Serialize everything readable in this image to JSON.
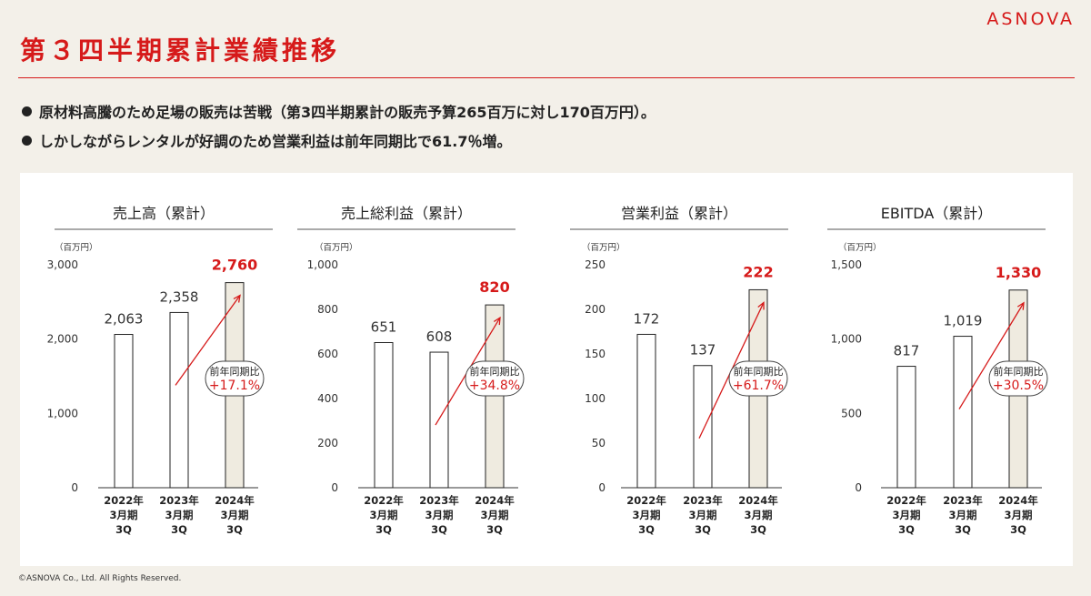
{
  "header": {
    "logo": "ASNOVA",
    "title": "第３四半期累計業績推移"
  },
  "bullets": [
    "原材料高騰のため足場の販売は苦戦（第3四半期累計の販売予算265百万に対し170百万円）。",
    "しかしながらレンタルが好調のため営業利益は前年同期比で61.7％増。"
  ],
  "footer": "©ASNOVA Co., Ltd. All Rights Reserved.",
  "colors": {
    "accent": "#d61a1a",
    "bar_fill": "#ffffff",
    "bar_highlight": "#efebe0",
    "bar_stroke": "#222222"
  },
  "chart_data": [
    {
      "type": "bar",
      "title": "売上高（累計）",
      "unit": "（百万円）",
      "categories": [
        [
          "2022年",
          "3月期",
          "3Q"
        ],
        [
          "2023年",
          "3月期",
          "3Q"
        ],
        [
          "2024年",
          "3月期",
          "3Q"
        ]
      ],
      "values": [
        2063,
        2358,
        2760
      ],
      "value_labels": [
        "2,063",
        "2,358",
        "2,760"
      ],
      "ylim": [
        0,
        3000
      ],
      "yticks": [
        "0",
        "1,000",
        "2,000",
        "3,000"
      ],
      "yoy_label": "前年同期比",
      "yoy_value": "+17.1%",
      "highlight_index": 2
    },
    {
      "type": "bar",
      "title": "売上総利益（累計）",
      "unit": "（百万円）",
      "categories": [
        [
          "2022年",
          "3月期",
          "3Q"
        ],
        [
          "2023年",
          "3月期",
          "3Q"
        ],
        [
          "2024年",
          "3月期",
          "3Q"
        ]
      ],
      "values": [
        651,
        608,
        820
      ],
      "value_labels": [
        "651",
        "608",
        "820"
      ],
      "ylim": [
        0,
        1000
      ],
      "yticks": [
        "0",
        "200",
        "400",
        "600",
        "800",
        "1,000"
      ],
      "yoy_label": "前年同期比",
      "yoy_value": "+34.8%",
      "highlight_index": 2
    },
    {
      "type": "bar",
      "title": "営業利益（累計）",
      "unit": "（百万円）",
      "categories": [
        [
          "2022年",
          "3月期",
          "3Q"
        ],
        [
          "2023年",
          "3月期",
          "3Q"
        ],
        [
          "2024年",
          "3月期",
          "3Q"
        ]
      ],
      "values": [
        172,
        137,
        222
      ],
      "value_labels": [
        "172",
        "137",
        "222"
      ],
      "ylim": [
        0,
        250
      ],
      "yticks": [
        "0",
        "50",
        "100",
        "150",
        "200",
        "250"
      ],
      "yoy_label": "前年同期比",
      "yoy_value": "+61.7%",
      "highlight_index": 2
    },
    {
      "type": "bar",
      "title": "EBITDA（累計）",
      "unit": "（百万円）",
      "categories": [
        [
          "2022年",
          "3月期",
          "3Q"
        ],
        [
          "2023年",
          "3月期",
          "3Q"
        ],
        [
          "2024年",
          "3月期",
          "3Q"
        ]
      ],
      "values": [
        817,
        1019,
        1330
      ],
      "value_labels": [
        "817",
        "1,019",
        "1,330"
      ],
      "ylim": [
        0,
        1500
      ],
      "yticks": [
        "0",
        "500",
        "1,000",
        "1,500"
      ],
      "yoy_label": "前年同期比",
      "yoy_value": "+30.5%",
      "highlight_index": 2
    }
  ]
}
